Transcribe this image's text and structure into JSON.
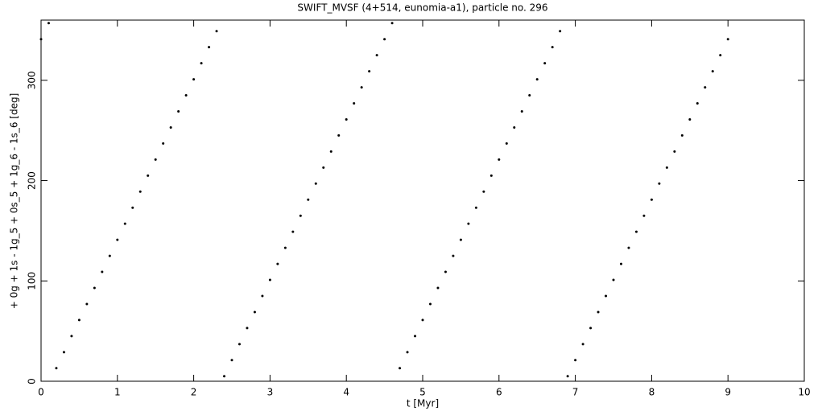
{
  "chart_data": {
    "type": "scatter",
    "title": "SWIFT_MVSF (4+514, eunomia-a1), particle no. 296",
    "xlabel": "t [Myr]",
    "ylabel": "+ 0g + 1s - 1g_5 + 0s_5 + 1g_6 - 1s_6 [deg]",
    "xlim": [
      0,
      10
    ],
    "ylim": [
      0,
      360
    ],
    "xticks": [
      0,
      1,
      2,
      3,
      4,
      5,
      6,
      7,
      8,
      9,
      10
    ],
    "yticks": [
      0,
      100,
      200,
      300
    ],
    "color": "#000000",
    "x": [
      0,
      0.1,
      0.2,
      0.3,
      0.4,
      0.5,
      0.6,
      0.7,
      0.8,
      0.9,
      1.0,
      1.1,
      1.2,
      1.3,
      1.4,
      1.5,
      1.6,
      1.7,
      1.8,
      1.9,
      2.0,
      2.1,
      2.2,
      2.3,
      2.4,
      2.5,
      2.6,
      2.7,
      2.8,
      2.9,
      3.0,
      3.1,
      3.2,
      3.3,
      3.4,
      3.5,
      3.6,
      3.7,
      3.8,
      3.9,
      4.0,
      4.1,
      4.2,
      4.3,
      4.4,
      4.5,
      4.6,
      4.7,
      4.8,
      4.9,
      5.0,
      5.1,
      5.2,
      5.3,
      5.4,
      5.5,
      5.6,
      5.7,
      5.8,
      5.9,
      6.0,
      6.1,
      6.2,
      6.3,
      6.4,
      6.5,
      6.6,
      6.7,
      6.8,
      6.9,
      7.0,
      7.1,
      7.2,
      7.3,
      7.4,
      7.5,
      7.6,
      7.7,
      7.8,
      7.9,
      8.0,
      8.1,
      8.2,
      8.3,
      8.4,
      8.5,
      8.6,
      8.7,
      8.8,
      8.9,
      9.0
    ],
    "values": [
      341,
      357,
      13,
      29,
      45,
      61,
      77,
      93,
      109,
      125,
      141,
      157,
      173,
      189,
      205,
      221,
      237,
      253,
      269,
      285,
      301,
      317,
      333,
      349,
      5,
      21,
      37,
      53,
      69,
      85,
      101,
      117,
      133,
      149,
      165,
      181,
      197,
      213,
      229,
      245,
      261,
      277,
      293,
      309,
      325,
      341,
      357,
      13,
      29,
      45,
      61,
      77,
      93,
      109,
      125,
      141,
      157,
      173,
      189,
      205,
      221,
      237,
      253,
      269,
      285,
      301,
      317,
      333,
      349,
      5,
      21,
      37,
      53,
      69,
      85,
      101,
      117,
      133,
      149,
      165,
      181,
      197,
      213,
      229,
      245,
      261,
      277,
      293,
      309,
      325,
      341
    ]
  }
}
